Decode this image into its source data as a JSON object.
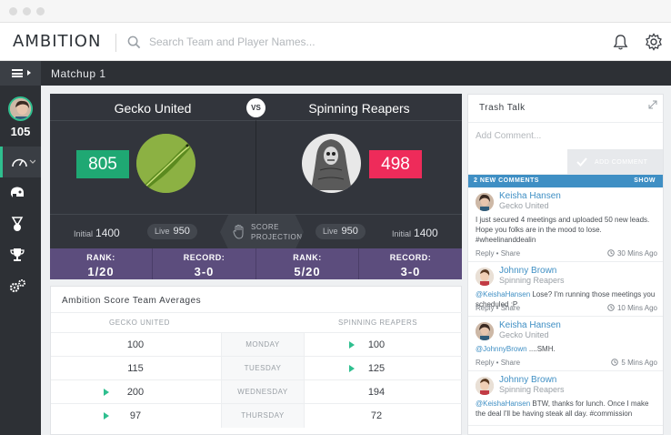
{
  "app": {
    "logo": "AMBITION",
    "search_placeholder": "Search Team and Player Names...",
    "page_title": "Matchup 1",
    "user_score": "105"
  },
  "matchup": {
    "vs": "VS",
    "home": {
      "name": "Gecko United",
      "score": "805",
      "initial_label": "Initial",
      "initial": "1400",
      "live_label": "Live",
      "live": "950",
      "rank_label": "RANK:",
      "rank": "1/20",
      "record_label": "RECORD:",
      "record": "3-0"
    },
    "away": {
      "name": "Spinning Reapers",
      "score": "498",
      "initial_label": "Initial",
      "initial": "1400",
      "live_label": "Live",
      "live": "950",
      "rank_label": "RANK:",
      "rank": "5/20",
      "record_label": "RECORD:",
      "record": "3-0"
    },
    "projections_line1": "SCORE",
    "projections_line2": "PROJECTIONS",
    "colors": {
      "home_score": "#1fa873",
      "away_score": "#ee2b5a",
      "rank_bg": "#5c4d7d"
    }
  },
  "averages": {
    "title": "Ambition Score Team Averages",
    "home_header": "GECKO UNITED",
    "away_header": "SPINNING REAPERS",
    "rows": [
      {
        "day": "MONDAY",
        "home": "100",
        "away": "100",
        "up": "away"
      },
      {
        "day": "TUESDAY",
        "home": "115",
        "away": "125",
        "up": "away"
      },
      {
        "day": "WEDNESDAY",
        "home": "200",
        "away": "194",
        "up": "home"
      },
      {
        "day": "THURSDAY",
        "home": "97",
        "away": "72",
        "up": "home"
      }
    ]
  },
  "trash_talk": {
    "title": "Trash Talk",
    "comment_placeholder": "Add Comment...",
    "add_button": "ADD COMMENT",
    "new_comments": "2 NEW COMMENTS",
    "show": "SHOW",
    "comments": [
      {
        "name": "Keisha Hansen",
        "team": "Gecko United",
        "text": "I just secured 4 meetings and uploaded 50 new leads. Hope you folks are in the mood to lose. #wheelinanddealin",
        "reply": "Reply",
        "share": "Share",
        "time": "30 Mins Ago"
      },
      {
        "name": "Johnny Brown",
        "team": "Spinning Reapers",
        "mention": "@KeishaHansen",
        "text": " Lose? I'm running those meetings you scheduled :P",
        "reply": "Reply",
        "share": "Share",
        "time": "10 Mins Ago"
      },
      {
        "name": "Keisha Hansen",
        "team": "Gecko United",
        "mention": "@JohnnyBrown",
        "text": " ....SMH.",
        "reply": "Reply",
        "share": "Share",
        "time": "5 Mins Ago"
      },
      {
        "name": "Johnny Brown",
        "team": "Spinning Reapers",
        "mention": "@KeishaHansen",
        "text": " BTW, thanks for lunch. Once I make the deal I'll be having steak all day. #commission"
      }
    ]
  }
}
